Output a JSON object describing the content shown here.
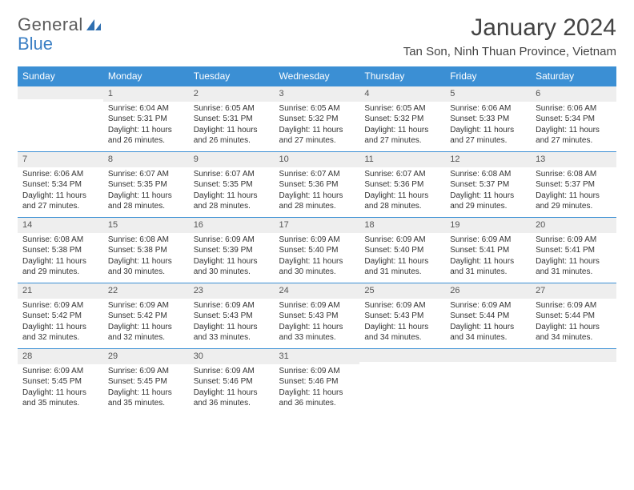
{
  "brand": {
    "part1": "General",
    "part2": "Blue"
  },
  "title": "January 2024",
  "location": "Tan Son, Ninh Thuan Province, Vietnam",
  "colors": {
    "header_bg": "#3b8fd4",
    "daynum_bg": "#eeeeee",
    "rule": "#3b8fd4",
    "text": "#333333"
  },
  "weekdays": [
    "Sunday",
    "Monday",
    "Tuesday",
    "Wednesday",
    "Thursday",
    "Friday",
    "Saturday"
  ],
  "weeks": [
    [
      null,
      {
        "n": "1",
        "sr": "6:04 AM",
        "ss": "5:31 PM",
        "dl": "11 hours and 26 minutes."
      },
      {
        "n": "2",
        "sr": "6:05 AM",
        "ss": "5:31 PM",
        "dl": "11 hours and 26 minutes."
      },
      {
        "n": "3",
        "sr": "6:05 AM",
        "ss": "5:32 PM",
        "dl": "11 hours and 27 minutes."
      },
      {
        "n": "4",
        "sr": "6:05 AM",
        "ss": "5:32 PM",
        "dl": "11 hours and 27 minutes."
      },
      {
        "n": "5",
        "sr": "6:06 AM",
        "ss": "5:33 PM",
        "dl": "11 hours and 27 minutes."
      },
      {
        "n": "6",
        "sr": "6:06 AM",
        "ss": "5:34 PM",
        "dl": "11 hours and 27 minutes."
      }
    ],
    [
      {
        "n": "7",
        "sr": "6:06 AM",
        "ss": "5:34 PM",
        "dl": "11 hours and 27 minutes."
      },
      {
        "n": "8",
        "sr": "6:07 AM",
        "ss": "5:35 PM",
        "dl": "11 hours and 28 minutes."
      },
      {
        "n": "9",
        "sr": "6:07 AM",
        "ss": "5:35 PM",
        "dl": "11 hours and 28 minutes."
      },
      {
        "n": "10",
        "sr": "6:07 AM",
        "ss": "5:36 PM",
        "dl": "11 hours and 28 minutes."
      },
      {
        "n": "11",
        "sr": "6:07 AM",
        "ss": "5:36 PM",
        "dl": "11 hours and 28 minutes."
      },
      {
        "n": "12",
        "sr": "6:08 AM",
        "ss": "5:37 PM",
        "dl": "11 hours and 29 minutes."
      },
      {
        "n": "13",
        "sr": "6:08 AM",
        "ss": "5:37 PM",
        "dl": "11 hours and 29 minutes."
      }
    ],
    [
      {
        "n": "14",
        "sr": "6:08 AM",
        "ss": "5:38 PM",
        "dl": "11 hours and 29 minutes."
      },
      {
        "n": "15",
        "sr": "6:08 AM",
        "ss": "5:38 PM",
        "dl": "11 hours and 30 minutes."
      },
      {
        "n": "16",
        "sr": "6:09 AM",
        "ss": "5:39 PM",
        "dl": "11 hours and 30 minutes."
      },
      {
        "n": "17",
        "sr": "6:09 AM",
        "ss": "5:40 PM",
        "dl": "11 hours and 30 minutes."
      },
      {
        "n": "18",
        "sr": "6:09 AM",
        "ss": "5:40 PM",
        "dl": "11 hours and 31 minutes."
      },
      {
        "n": "19",
        "sr": "6:09 AM",
        "ss": "5:41 PM",
        "dl": "11 hours and 31 minutes."
      },
      {
        "n": "20",
        "sr": "6:09 AM",
        "ss": "5:41 PM",
        "dl": "11 hours and 31 minutes."
      }
    ],
    [
      {
        "n": "21",
        "sr": "6:09 AM",
        "ss": "5:42 PM",
        "dl": "11 hours and 32 minutes."
      },
      {
        "n": "22",
        "sr": "6:09 AM",
        "ss": "5:42 PM",
        "dl": "11 hours and 32 minutes."
      },
      {
        "n": "23",
        "sr": "6:09 AM",
        "ss": "5:43 PM",
        "dl": "11 hours and 33 minutes."
      },
      {
        "n": "24",
        "sr": "6:09 AM",
        "ss": "5:43 PM",
        "dl": "11 hours and 33 minutes."
      },
      {
        "n": "25",
        "sr": "6:09 AM",
        "ss": "5:43 PM",
        "dl": "11 hours and 34 minutes."
      },
      {
        "n": "26",
        "sr": "6:09 AM",
        "ss": "5:44 PM",
        "dl": "11 hours and 34 minutes."
      },
      {
        "n": "27",
        "sr": "6:09 AM",
        "ss": "5:44 PM",
        "dl": "11 hours and 34 minutes."
      }
    ],
    [
      {
        "n": "28",
        "sr": "6:09 AM",
        "ss": "5:45 PM",
        "dl": "11 hours and 35 minutes."
      },
      {
        "n": "29",
        "sr": "6:09 AM",
        "ss": "5:45 PM",
        "dl": "11 hours and 35 minutes."
      },
      {
        "n": "30",
        "sr": "6:09 AM",
        "ss": "5:46 PM",
        "dl": "11 hours and 36 minutes."
      },
      {
        "n": "31",
        "sr": "6:09 AM",
        "ss": "5:46 PM",
        "dl": "11 hours and 36 minutes."
      },
      null,
      null,
      null
    ]
  ],
  "labels": {
    "sunrise": "Sunrise: ",
    "sunset": "Sunset: ",
    "daylight": "Daylight: "
  }
}
